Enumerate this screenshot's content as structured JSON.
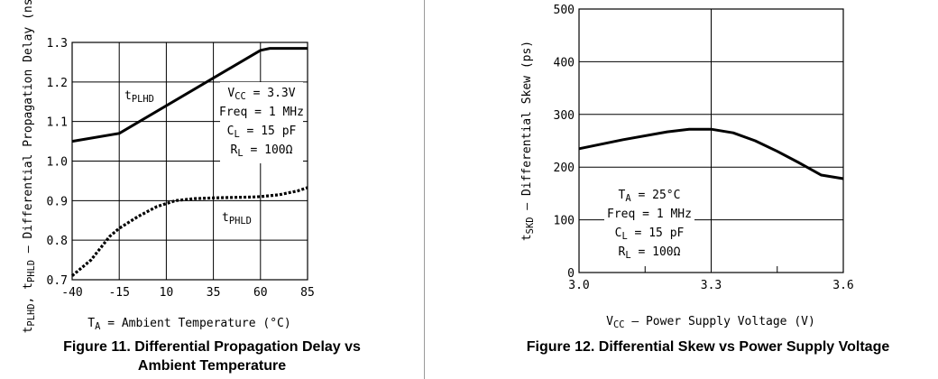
{
  "figures": [
    {
      "caption_line1": "Figure 11. Differential Propagation Delay vs",
      "caption_line2": "Ambient Temperature"
    },
    {
      "caption": "Figure 12. Differential Skew vs Power Supply Voltage"
    }
  ],
  "chart_data": [
    {
      "type": "line",
      "xlabel": {
        "main": "T",
        "sub": "A",
        "rest": " = Ambient Temperature (°C)"
      },
      "ylabel": {
        "parts": [
          [
            "t",
            ""
          ],
          [
            "PLHD",
            "sub"
          ],
          [
            ", t",
            ""
          ],
          [
            "PHLD",
            "sub"
          ],
          [
            " – Differential Propagation Delay (ns)",
            ""
          ]
        ]
      },
      "xlim": [
        -40,
        85
      ],
      "ylim": [
        0.7,
        1.3
      ],
      "x_ticks": [
        -40,
        -15,
        10,
        35,
        60,
        85
      ],
      "x_tick_labels": [
        "-40",
        "-15",
        "10",
        "35",
        "60",
        "85"
      ],
      "y_ticks": [
        0.7,
        0.8,
        0.9,
        1.0,
        1.1,
        1.2,
        1.3
      ],
      "y_tick_labels": [
        "0.7",
        "0.8",
        "0.9",
        "1.0",
        "1.1",
        "1.2",
        "1.3"
      ],
      "grid": true,
      "series": [
        {
          "name": {
            "main": "t",
            "sub": "PLHD"
          },
          "style": "solid",
          "x": [
            -40,
            -15,
            60,
            65,
            85
          ],
          "y": [
            1.05,
            1.07,
            1.28,
            1.285,
            1.285
          ]
        },
        {
          "name": {
            "main": "t",
            "sub": "PHLD"
          },
          "style": "dotted",
          "x": [
            -40,
            -30,
            -20,
            -15,
            -5,
            5,
            15,
            25,
            35,
            45,
            55,
            60,
            70,
            80,
            85
          ],
          "y": [
            0.71,
            0.75,
            0.81,
            0.83,
            0.86,
            0.885,
            0.9,
            0.905,
            0.907,
            0.908,
            0.909,
            0.91,
            0.915,
            0.925,
            0.933
          ]
        }
      ],
      "annotation": [
        [
          [
            "V",
            ""
          ],
          [
            "CC",
            "sub"
          ],
          [
            " = 3.3V",
            ""
          ]
        ],
        [
          [
            "Freq = 1 MHz",
            ""
          ]
        ],
        [
          [
            "C",
            ""
          ],
          [
            "L",
            "sub"
          ],
          [
            " = 15 pF",
            ""
          ]
        ],
        [
          [
            "R",
            ""
          ],
          [
            "L",
            "sub"
          ],
          [
            " = 100Ω",
            ""
          ]
        ]
      ]
    },
    {
      "type": "line",
      "xlabel": {
        "main": "V",
        "sub": "CC",
        "rest": " – Power Supply Voltage (V)"
      },
      "ylabel": {
        "parts": [
          [
            "t",
            ""
          ],
          [
            "SKD",
            "sub"
          ],
          [
            " – Differential Skew (ps)",
            ""
          ]
        ]
      },
      "xlim": [
        3.0,
        3.6
      ],
      "ylim": [
        0,
        500
      ],
      "x_ticks": [
        3.0,
        3.3,
        3.6
      ],
      "x_tick_labels": [
        "3.0",
        "3.3",
        "3.6"
      ],
      "y_ticks": [
        0,
        100,
        200,
        300,
        400,
        500
      ],
      "y_tick_labels": [
        "0",
        "100",
        "200",
        "300",
        "400",
        "500"
      ],
      "grid": true,
      "series": [
        {
          "style": "solid",
          "x": [
            3.0,
            3.1,
            3.2,
            3.25,
            3.3,
            3.35,
            3.4,
            3.45,
            3.5,
            3.55,
            3.6
          ],
          "y": [
            235,
            252,
            267,
            272,
            272,
            265,
            250,
            230,
            208,
            185,
            178
          ]
        }
      ],
      "annotation": [
        [
          [
            "T",
            ""
          ],
          [
            "A",
            "sub"
          ],
          [
            " = 25°C",
            ""
          ]
        ],
        [
          [
            "Freq = 1 MHz",
            ""
          ]
        ],
        [
          [
            "C",
            ""
          ],
          [
            "L",
            "sub"
          ],
          [
            " = 15 pF",
            ""
          ]
        ],
        [
          [
            "R",
            ""
          ],
          [
            "L",
            "sub"
          ],
          [
            " = 100Ω",
            ""
          ]
        ]
      ]
    }
  ]
}
